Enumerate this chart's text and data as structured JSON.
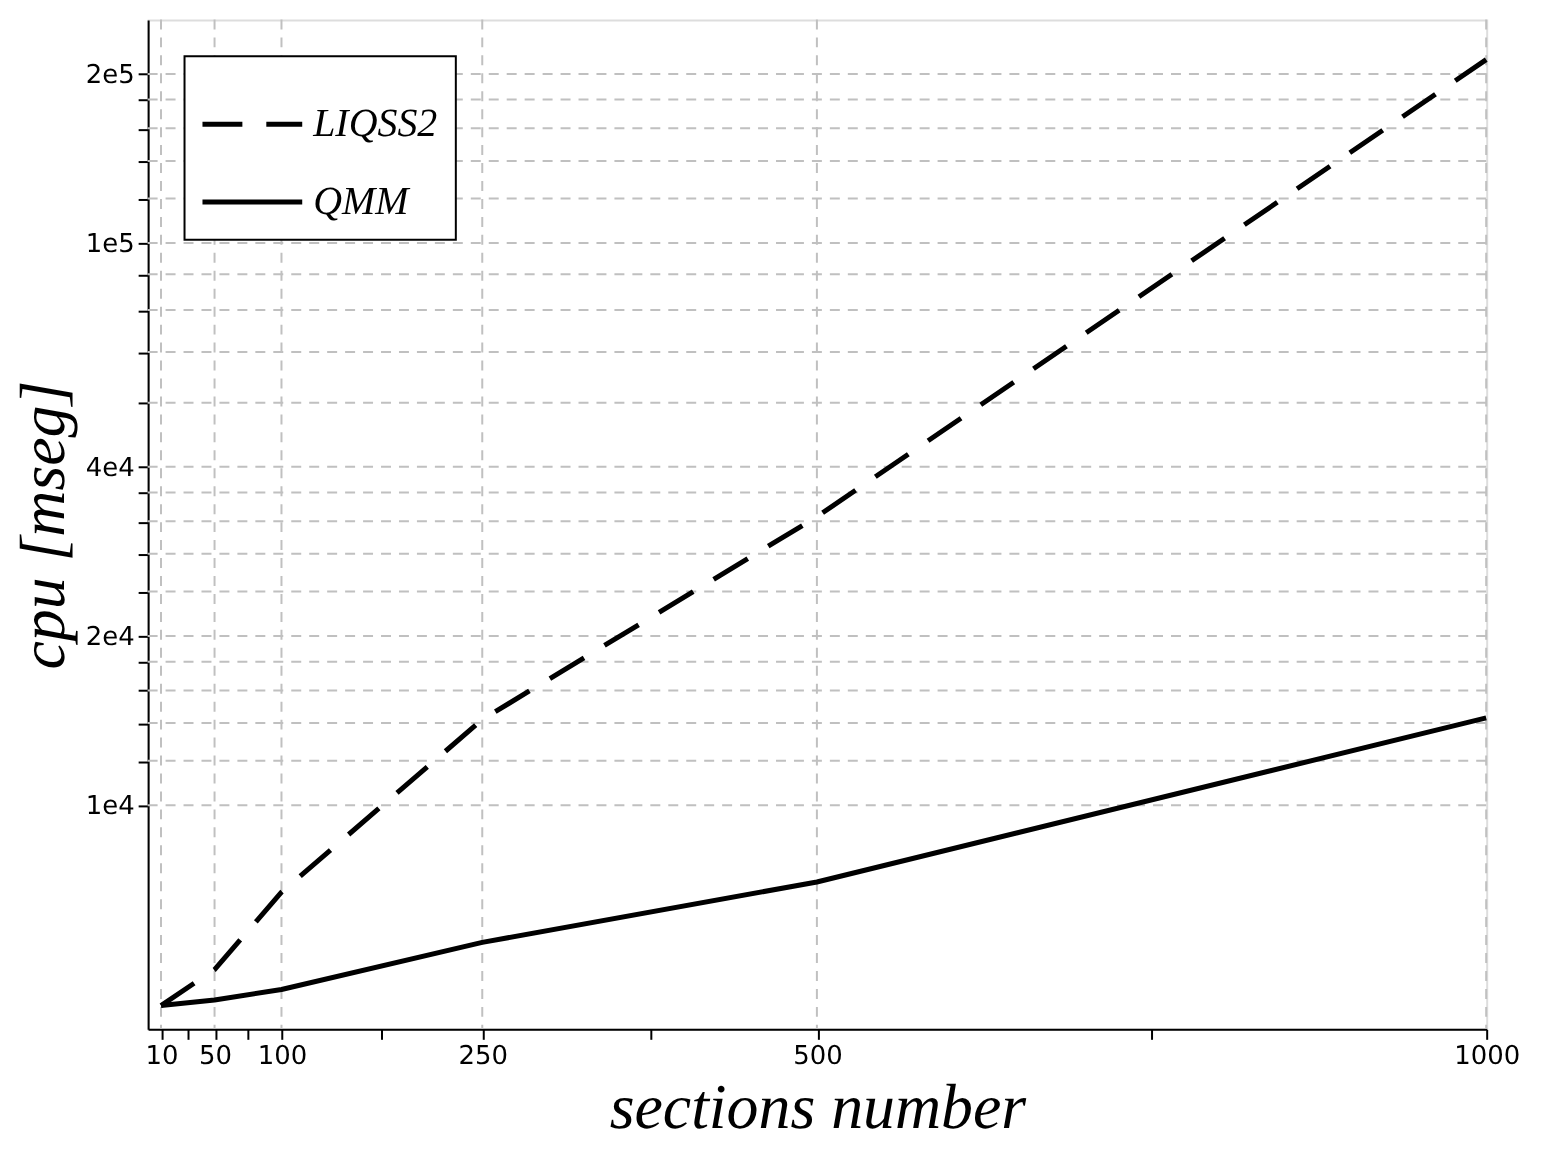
{
  "chart_data": {
    "type": "line",
    "xlabel": "sections number",
    "ylabel": "cpu [mseg]",
    "x": [
      10,
      50,
      100,
      250,
      500,
      1000
    ],
    "series": [
      {
        "name": "LIQSS2",
        "color": "#000000",
        "line_style": "dashed",
        "values": [
          4400,
          5100,
          7000,
          14200,
          32600,
          212000
        ]
      },
      {
        "name": "QMM",
        "color": "#000000",
        "line_style": "solid",
        "values": [
          4400,
          4500,
          4700,
          5700,
          7300,
          14300
        ]
      }
    ],
    "log": "y",
    "xlim": [
      0,
      1000
    ],
    "ylim": [
      4000,
      250000
    ],
    "xticks": [
      10,
      {
        "value": 30,
        "label": null
      },
      50,
      {
        "value": 75,
        "label": null
      },
      100,
      {
        "value": 175,
        "label": null
      },
      250,
      {
        "value": 375,
        "label": null
      },
      500,
      {
        "value": 750,
        "label": null
      },
      1000
    ],
    "yticks": [
      {
        "value": 10000,
        "label": "1e4"
      },
      {
        "value": 12000,
        "label": null
      },
      {
        "value": 14000,
        "label": null
      },
      {
        "value": 16000,
        "label": null
      },
      {
        "value": 18000,
        "label": null
      },
      {
        "value": 20000,
        "label": "2e4"
      },
      {
        "value": 24000,
        "label": null
      },
      {
        "value": 28000,
        "label": null
      },
      {
        "value": 32000,
        "label": null
      },
      {
        "value": 36000,
        "label": null
      },
      {
        "value": 40000,
        "label": "4e4"
      },
      {
        "value": 52000,
        "label": null
      },
      {
        "value": 64000,
        "label": null
      },
      {
        "value": 76000,
        "label": null
      },
      {
        "value": 88000,
        "label": null
      },
      {
        "value": 100000,
        "label": "1e5"
      },
      {
        "value": 120000,
        "label": null
      },
      {
        "value": 140000,
        "label": null
      },
      {
        "value": 160000,
        "label": null
      },
      {
        "value": 180000,
        "label": null
      },
      {
        "value": 200000,
        "label": "2e5"
      }
    ],
    "grid": true,
    "legend": "top left",
    "marker": "none"
  }
}
